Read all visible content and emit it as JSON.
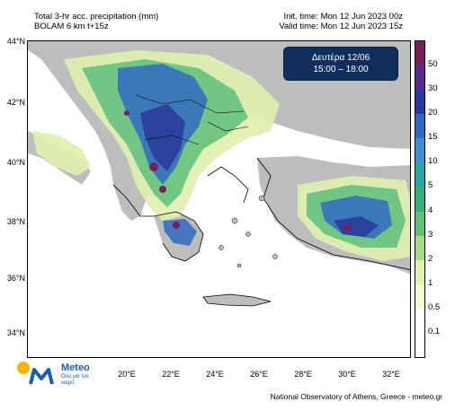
{
  "header": {
    "title_line1": "Total 3-hr acc. precipitation (mm)",
    "title_line2": "BOLAM 6 km t+15z",
    "init_time": "Init. time: Mon 12 Jun 2023 00z",
    "valid_time": "Valid time: Mon 12 Jun 2023 15z"
  },
  "date_box": {
    "day": "Δευτέρα 12/06",
    "time": "15:00 – 18:00"
  },
  "lat_labels": [
    "44°N",
    "42°N",
    "40°N",
    "38°N",
    "36°N",
    "34°N"
  ],
  "lon_labels": [
    "20°E",
    "22°E",
    "24°E",
    "26°E",
    "28°E",
    "30°E",
    "32°E"
  ],
  "legend": {
    "levels": [
      "50",
      "30",
      "20",
      "15",
      "10",
      "5",
      "4",
      "3",
      "2",
      "1",
      "0.5",
      "0.1"
    ],
    "colors": [
      "#7a1f5c",
      "#5a2a8a",
      "#2b3a9a",
      "#2f6bc2",
      "#3b8fd0",
      "#2aa6a6",
      "#36b07a",
      "#5fc07a",
      "#a6d98a",
      "#dff0b0",
      "#f3f8d0",
      "#ffffff",
      "#ffffff"
    ]
  },
  "map_colors": {
    "sea": "#ffffff",
    "land": "#bdbdbd",
    "light_rain": "#dff0b0",
    "moderate": "#5fc07a",
    "heavy": "#2f6bc2",
    "very_heavy": "#2b3a9a",
    "extreme": "#7a1f5c"
  },
  "logo": {
    "name": "Meteo",
    "sub": "Όλα για τον καιρό"
  },
  "footer": "National Observatory of Athens, Greece - meteo.gr"
}
